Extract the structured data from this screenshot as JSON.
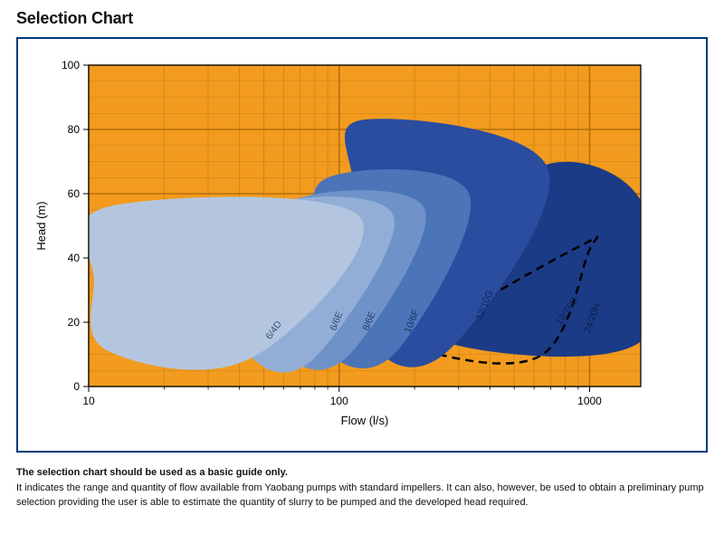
{
  "title": "Selection Chart",
  "footer": {
    "bold": "The selection chart should be used as a basic guide only.",
    "rest": "It indicates the range and quantity of flow available from Yaobang pumps with standard impellers. It can also, however, be used to obtain a preliminary pump selection providing the user is able to estimate the quantity of slurry to be pumped and the developed head required."
  },
  "chart": {
    "type": "area-envelope",
    "xlabel": "Flow (l/s)",
    "ylabel": "Head (m)",
    "label_fontsize": 13,
    "tick_fontsize": 12,
    "x_log": true,
    "xlim": [
      10,
      1600
    ],
    "ylim": [
      0,
      100
    ],
    "ytick_step": 20,
    "xticks": [
      10,
      100,
      1000
    ],
    "background_color": "#f29b1e",
    "plot_border_color": "#1a1a1a",
    "major_grid_color": "#b36f0d",
    "minor_grid_color": "#c7821a",
    "frame_border_color": "#003a7a",
    "regions": [
      {
        "name": "24/20H",
        "fill": "#1b3b86",
        "label_color": "#0a1e4d",
        "points": [
          [
            290,
            13
          ],
          [
            1600,
            14
          ],
          [
            1600,
            58
          ],
          [
            620,
            68
          ],
          [
            290,
            30
          ]
        ],
        "label_at": [
          1050,
          21
        ],
        "label_angle": -70
      },
      {
        "name": "18/16G",
        "fill": "#1b3b86",
        "dashed_outline": true,
        "points": [
          [
            250,
            10
          ],
          [
            650,
            10
          ],
          [
            980,
            41
          ],
          [
            930,
            44
          ],
          [
            250,
            18
          ]
        ],
        "label_at": [
          830,
          23
        ],
        "label_angle": -55
      },
      {
        "name": "12/10G",
        "fill": "#2a4da0",
        "label_color": "#0e2356",
        "points": [
          [
            135,
            14
          ],
          [
            280,
            12
          ],
          [
            680,
            68
          ],
          [
            125,
            83
          ],
          [
            115,
            60
          ]
        ],
        "label_at": [
          390,
          25
        ],
        "label_angle": -68
      },
      {
        "name": "10/6F",
        "fill": "#4c74b8",
        "label_color": "#123163",
        "points": [
          [
            90,
            11
          ],
          [
            170,
            11
          ],
          [
            330,
            60
          ],
          [
            90,
            65
          ],
          [
            82,
            40
          ]
        ],
        "label_at": [
          200,
          20
        ],
        "label_angle": -68
      },
      {
        "name": "8/6E",
        "fill": "#6f93c9",
        "label_color": "#1a3a66",
        "points": [
          [
            62,
            10
          ],
          [
            110,
            10
          ],
          [
            220,
            55
          ],
          [
            66,
            58
          ],
          [
            58,
            35
          ]
        ],
        "label_at": [
          135,
          20
        ],
        "label_angle": -68
      },
      {
        "name": "6/6E",
        "fill": "#92aed6",
        "label_color": "#2a496f",
        "points": [
          [
            45,
            9
          ],
          [
            80,
            9
          ],
          [
            165,
            53
          ],
          [
            50,
            56
          ],
          [
            44,
            32
          ]
        ],
        "label_at": [
          100,
          20
        ],
        "label_angle": -68
      },
      {
        "name": "6/4D",
        "fill": "#b4c6df",
        "label_color": "#3a5573",
        "points": [
          [
            12,
            11
          ],
          [
            45,
            9
          ],
          [
            120,
            53
          ],
          [
            12,
            56
          ],
          [
            10.5,
            33
          ]
        ],
        "label_at": [
          56,
          17
        ],
        "label_angle": -55
      }
    ]
  }
}
